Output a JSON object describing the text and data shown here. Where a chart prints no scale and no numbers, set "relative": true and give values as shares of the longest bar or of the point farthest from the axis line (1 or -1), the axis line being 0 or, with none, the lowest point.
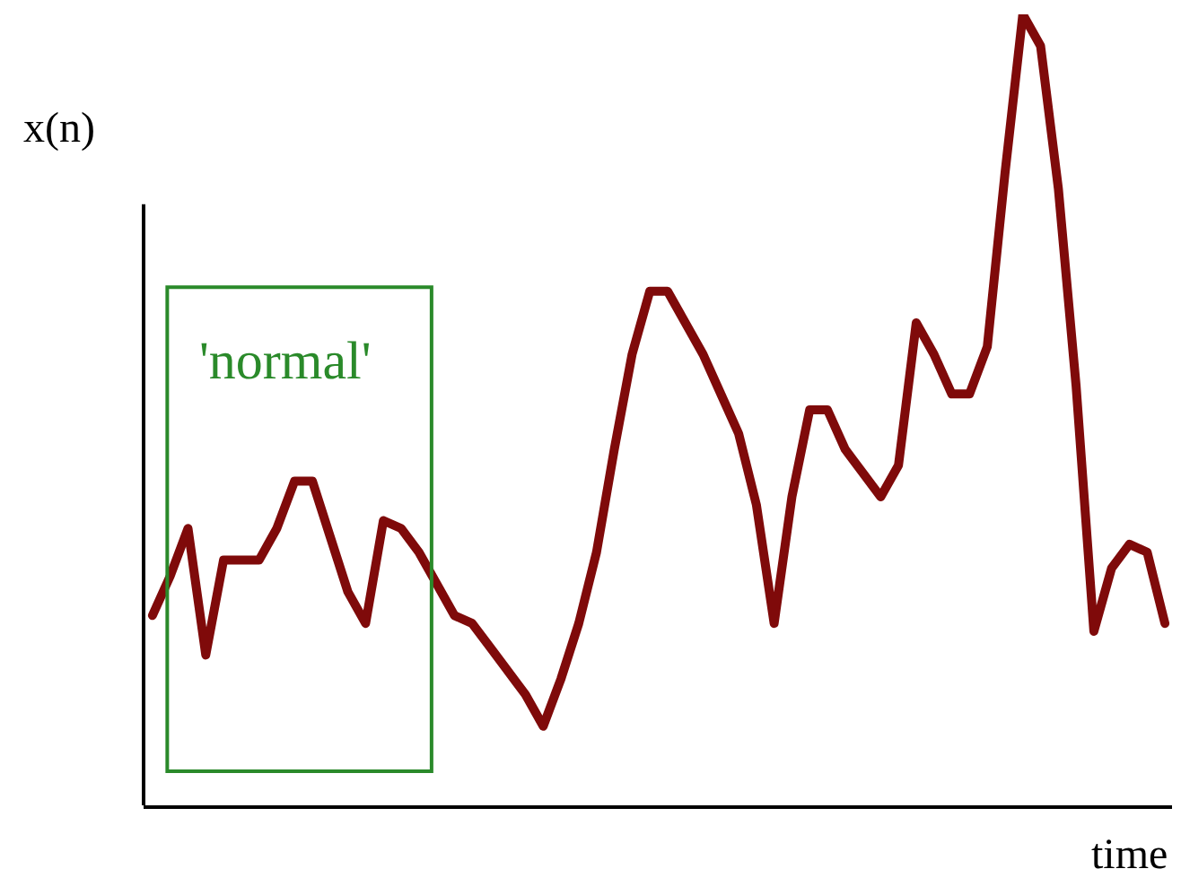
{
  "chart_data": {
    "type": "line",
    "relative": true,
    "xlabel": "time",
    "ylabel": "x(n)",
    "categories": [
      null,
      null,
      null,
      null,
      null,
      null,
      null,
      null,
      null,
      null,
      null,
      null,
      null,
      null,
      null,
      null,
      null,
      null,
      null,
      null,
      null,
      null,
      null,
      null,
      null,
      null,
      null,
      null,
      null,
      null,
      null,
      null,
      null,
      null,
      null,
      null,
      null,
      null,
      null,
      null,
      null,
      null,
      null,
      null,
      null,
      null,
      null,
      null,
      null,
      null,
      null,
      null,
      null,
      null,
      null,
      null,
      null,
      null
    ],
    "series": [
      {
        "color": "#7f0a0a",
        "values": [
          0.24,
          0.29,
          0.35,
          0.19,
          0.31,
          0.31,
          0.31,
          0.35,
          0.41,
          0.41,
          0.34,
          0.27,
          0.23,
          0.36,
          0.35,
          0.32,
          0.28,
          0.24,
          0.23,
          0.2,
          0.17,
          0.14,
          0.1,
          0.16,
          0.23,
          0.32,
          0.45,
          0.57,
          0.65,
          0.65,
          0.61,
          0.57,
          0.52,
          0.47,
          0.38,
          0.23,
          0.39,
          0.5,
          0.5,
          0.45,
          0.42,
          0.39,
          0.43,
          0.61,
          0.57,
          0.52,
          0.52,
          0.58,
          0.8,
          1,
          0.96,
          0.78,
          0.53,
          0.22,
          0.3,
          0.33,
          0.32,
          0.23
        ]
      }
    ],
    "annotations": [
      "'normal'"
    ],
    "marker": "none",
    "line_style": "solid"
  }
}
